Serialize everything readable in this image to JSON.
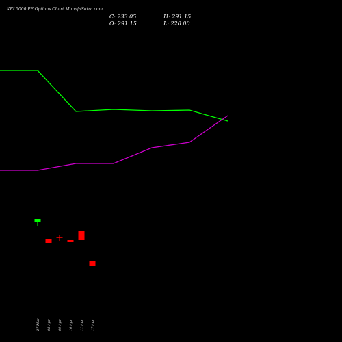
{
  "chart_data": {
    "type": "candlestick",
    "title": "KEI 5000 PE Options Chart MunafaSutra.com",
    "ohlc_readout": {
      "C": "C: 233.05",
      "H": "H: 291.15",
      "O": "O: 291.15",
      "L": "L: 220.00"
    },
    "x_labels": [
      "27 Mar",
      "08 Apr",
      "09 Apr",
      "10 Apr",
      "11 Apr",
      "17 Apr"
    ],
    "candles": [
      {
        "label": "27 Mar",
        "open": 120,
        "high": 125,
        "low": 115,
        "close": 125,
        "color": "#00ff00"
      },
      {
        "label": "08 Apr",
        "open": 95,
        "high": 95,
        "low": 90,
        "close": 90,
        "color": "#ff0000"
      },
      {
        "label": "09 Apr",
        "open": 98,
        "high": 101,
        "low": 93,
        "close": 97,
        "color": "#ff0000"
      },
      {
        "label": "10 Apr",
        "open": 94,
        "high": 94,
        "low": 91,
        "close": 91,
        "color": "#ff0000"
      },
      {
        "label": "11 Apr",
        "open": 107,
        "high": 107,
        "low": 94,
        "close": 94,
        "color": "#ff0000"
      },
      {
        "label": "17 Apr",
        "open": 63,
        "high": 63,
        "low": 56,
        "close": 56,
        "color": "#ff0000"
      }
    ],
    "series": [
      {
        "color": "#00ff00",
        "values": [
          342,
          342,
          282,
          285,
          283,
          284,
          268
        ]
      },
      {
        "color": "#cc00cc",
        "values": [
          196,
          196,
          206,
          206,
          229,
          237,
          276
        ]
      }
    ],
    "ylim": [
      0,
      375
    ]
  }
}
